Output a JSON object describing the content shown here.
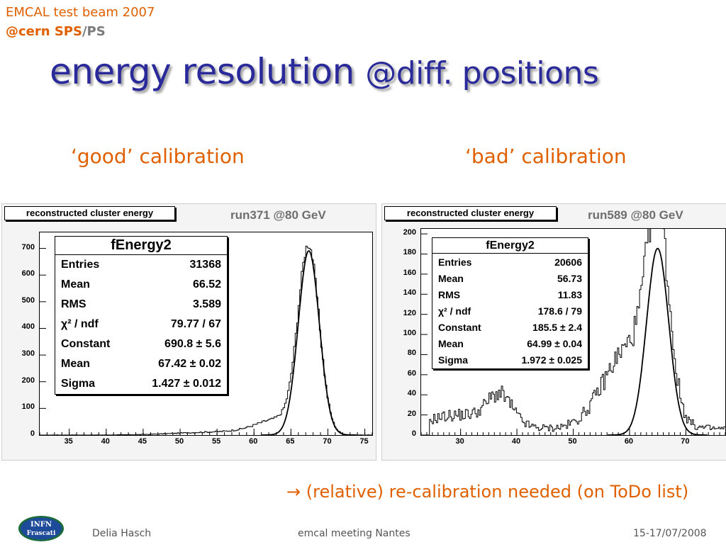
{
  "header": {
    "line1": "EMCAL test beam 2007",
    "line2_part1": "@cern SPS",
    "line2_sep": "/",
    "line2_part2": "PS"
  },
  "title_main": "energy resolution ",
  "title_small": "@diff. positions",
  "left": {
    "heading": "‘good’ calibration",
    "hist_title": "reconstructed cluster energy",
    "run_label": "run371 @80 GeV",
    "stats_title": "fEnergy2",
    "stats": [
      {
        "label": "Entries",
        "value": "31368"
      },
      {
        "label": "Mean",
        "value": "66.52"
      },
      {
        "label": "RMS",
        "value": "3.589"
      },
      {
        "label": "χ² / ndf",
        "value": "79.77 / 67"
      },
      {
        "label": "Constant",
        "value": "690.8 ± 5.6"
      },
      {
        "label": "Mean",
        "value": "67.42 ± 0.02"
      },
      {
        "label": "Sigma",
        "value": "1.427 ± 0.012"
      }
    ]
  },
  "right": {
    "heading": "‘bad’ calibration",
    "hist_title": "reconstructed cluster energy",
    "run_label": "run589 @80 GeV",
    "stats_title": "fEnergy2",
    "stats": [
      {
        "label": "Entries",
        "value": "20606"
      },
      {
        "label": "Mean",
        "value": "56.73"
      },
      {
        "label": "RMS",
        "value": "11.83"
      },
      {
        "label": "χ² / ndf",
        "value": "178.6 / 79"
      },
      {
        "label": "Constant",
        "value": "185.5 ± 2.4"
      },
      {
        "label": "Mean",
        "value": "64.99 ± 0.04"
      },
      {
        "label": "Sigma",
        "value": "1.972 ± 0.025"
      }
    ]
  },
  "note": "→ (relative) re-calibration needed (on ToDo list)",
  "footer": {
    "logo_line1": "INFN",
    "logo_line2": "Frascati",
    "author": "Delia Hasch",
    "meeting": "emcal meeting Nantes",
    "date": "15-17/07/2008"
  },
  "colors": {
    "orange": "#e06000",
    "title_blue": "#2a2a9a",
    "gray": "#7a7a7a"
  },
  "chart_data": [
    {
      "type": "histogram",
      "name": "fEnergy2",
      "title": "reconstructed cluster energy",
      "xlim": [
        31,
        76
      ],
      "ylim": [
        0,
        760
      ],
      "xticks": [
        35,
        40,
        45,
        50,
        55,
        60,
        65,
        70,
        75
      ],
      "yticks": [
        0,
        100,
        200,
        300,
        400,
        500,
        600,
        700
      ],
      "shape": {
        "noise": 0,
        "components": [
          {
            "A": 690,
            "mu": 67.4,
            "sigma": 1.43
          },
          {
            "A": 55,
            "mu": 63.5,
            "sigma": 3.0
          },
          {
            "A": 12,
            "mu": 56.0,
            "sigma": 6.0
          }
        ]
      },
      "fit": {
        "A": 690.8,
        "mu": 67.42,
        "sigma": 1.427
      }
    },
    {
      "type": "histogram",
      "name": "fEnergy2",
      "title": "reconstructed cluster energy",
      "xlim": [
        23,
        77
      ],
      "ylim": [
        0,
        205
      ],
      "xticks": [
        30,
        40,
        50,
        60,
        70
      ],
      "yticks": [
        0,
        20,
        40,
        60,
        80,
        100,
        120,
        140,
        160,
        180,
        200
      ],
      "shape": {
        "noise": 6,
        "components": [
          {
            "A": 185,
            "mu": 65.0,
            "sigma": 1.97
          },
          {
            "A": 80,
            "mu": 60.0,
            "sigma": 4.5
          },
          {
            "A": 28,
            "mu": 37.0,
            "sigma": 2.2
          },
          {
            "A": 14,
            "mu": 30.0,
            "sigma": 6.0
          }
        ]
      },
      "fit": {
        "A": 185.5,
        "mu": 64.99,
        "sigma": 1.972
      }
    }
  ]
}
